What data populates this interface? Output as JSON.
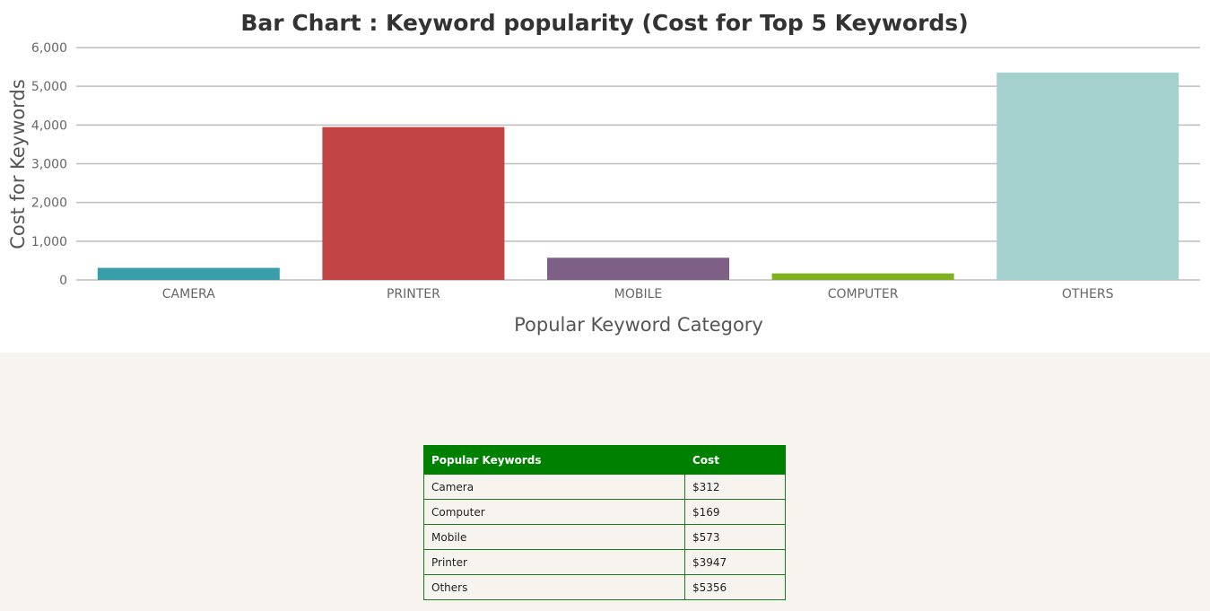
{
  "chart_data": {
    "type": "bar",
    "title": "Bar Chart : Keyword popularity (Cost for Top 5 Keywords)",
    "xlabel": "Popular Keyword Category",
    "ylabel": "Cost for Keywords",
    "categories": [
      "CAMERA",
      "PRINTER",
      "MOBILE",
      "COMPUTER",
      "OTHERS"
    ],
    "values": [
      312,
      3947,
      573,
      169,
      5356
    ],
    "colors": [
      "#3a9eaa",
      "#c24545",
      "#7e5f86",
      "#7fb21e",
      "#a4d0cd"
    ],
    "ylim": [
      0,
      6000
    ],
    "yticks": [
      0,
      1000,
      2000,
      3000,
      4000,
      5000,
      6000
    ],
    "ytick_labels": [
      "0",
      "1,000",
      "2,000",
      "3,000",
      "4,000",
      "5,000",
      "6,000"
    ],
    "grid": true
  },
  "table": {
    "headers": [
      "Popular Keywords",
      "Cost"
    ],
    "rows": [
      [
        "Camera",
        "$312"
      ],
      [
        "Computer",
        "$169"
      ],
      [
        "Mobile",
        "$573"
      ],
      [
        "Printer",
        "$3947"
      ],
      [
        "Others",
        "$5356"
      ]
    ],
    "header_color": "#008000"
  }
}
